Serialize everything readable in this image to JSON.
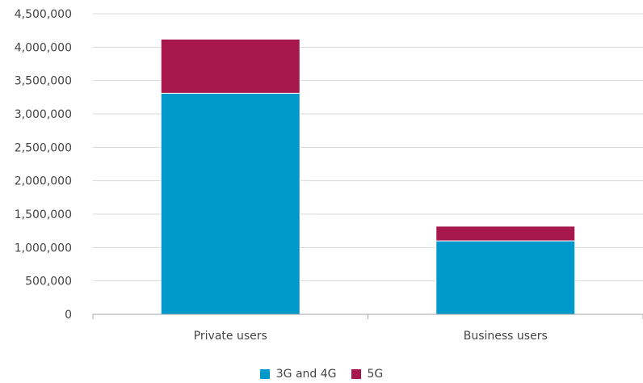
{
  "chart_data": {
    "type": "bar",
    "stacked": true,
    "categories": [
      "Private users",
      "Business users"
    ],
    "series": [
      {
        "name": "3G and 4G",
        "color": "#0099cc",
        "values": [
          3310000,
          1100000
        ]
      },
      {
        "name": "5G",
        "color": "#a6184c",
        "values": [
          810000,
          220000
        ]
      }
    ],
    "ylim": [
      0,
      4500000
    ],
    "yticks": [
      "0",
      "500,000",
      "1,000,000",
      "1,500,000",
      "2,000,000",
      "2,500,000",
      "3,000,000",
      "3,500,000",
      "4,000,000",
      "4,500,000"
    ],
    "ytick_values": [
      0,
      500000,
      1000000,
      1500000,
      2000000,
      2500000,
      3000000,
      3500000,
      4000000,
      4500000
    ],
    "grid": true,
    "legend_position": "bottom-center",
    "title": "",
    "xlabel": "",
    "ylabel": ""
  }
}
